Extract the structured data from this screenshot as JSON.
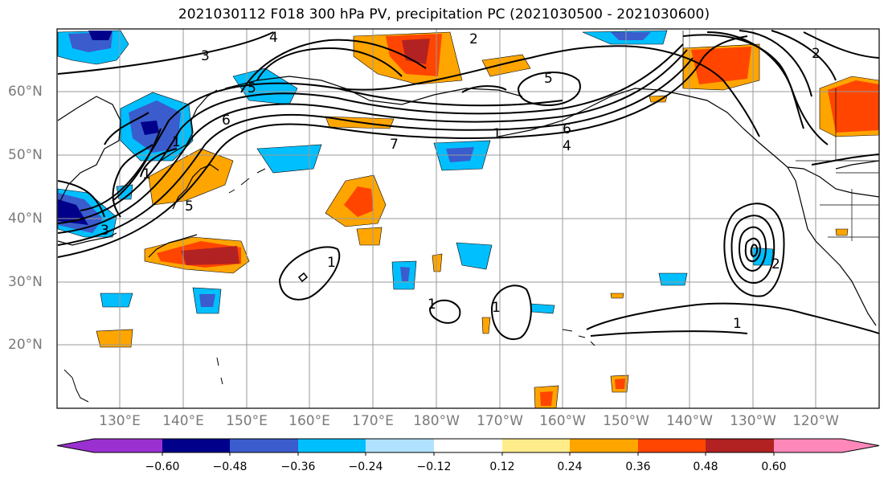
{
  "title": "2021030112 F018 300 hPa PV, precipitation PC (2021030500 - 2021030600)",
  "lat_labels": [
    "60°N",
    "50°N",
    "40°N",
    "30°N",
    "20°N"
  ],
  "lon_labels": [
    "130°E",
    "140°E",
    "150°E",
    "160°E",
    "170°E",
    "180°W",
    "170°W",
    "160°W",
    "150°W",
    "140°W",
    "130°W",
    "120°W"
  ],
  "contour_labels": [
    "1",
    "1",
    "1",
    "1",
    "1",
    "1",
    "1",
    "2",
    "2",
    "2",
    "3",
    "3",
    "4",
    "4",
    "5",
    "5",
    "5",
    "6",
    "6",
    "7"
  ],
  "colorbar": {
    "tick_labels": [
      "−0.60",
      "−0.48",
      "−0.36",
      "−0.24",
      "−0.12",
      "0.12",
      "0.24",
      "0.36",
      "0.48",
      "0.60"
    ],
    "colors": [
      "#9b30d0",
      "#00008b",
      "#3a5ccc",
      "#00bfff",
      "#b0e2ff",
      "#ffffff",
      "#ffec8b",
      "#ffa500",
      "#ff4500",
      "#b22222",
      "#ff88bb"
    ]
  },
  "colors": {
    "land_line": "#000000",
    "grid": "#9a9a9a",
    "pv_contour": "#000000",
    "label_gray": "#7a7a7a"
  }
}
